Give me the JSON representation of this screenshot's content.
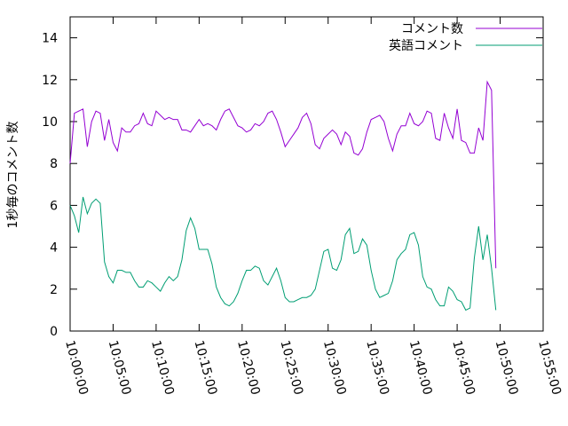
{
  "chart_data": {
    "type": "line",
    "ylabel": "1秒毎のコメント数",
    "xlabel": "",
    "ylim": [
      0,
      15
    ],
    "yticks": [
      0,
      2,
      4,
      6,
      8,
      10,
      12,
      14
    ],
    "x_range_minutes": [
      0,
      55
    ],
    "xticks": [
      "10:00:00",
      "10:05:00",
      "10:10:00",
      "10:15:00",
      "10:20:00",
      "10:25:00",
      "10:30:00",
      "10:35:00",
      "10:40:00",
      "10:45:00",
      "10:50:00",
      "10:55:00"
    ],
    "legend_position": "top-right",
    "grid": false,
    "x_step_minutes": 0.5,
    "series": [
      {
        "name": "コメント数",
        "color": "#9400d3",
        "values": [
          8.0,
          10.4,
          10.5,
          10.6,
          8.8,
          10.0,
          10.5,
          10.4,
          9.1,
          10.1,
          9.0,
          8.6,
          9.7,
          9.5,
          9.5,
          9.8,
          9.9,
          10.4,
          9.9,
          9.8,
          10.5,
          10.3,
          10.1,
          10.2,
          10.1,
          10.1,
          9.6,
          9.6,
          9.5,
          9.8,
          10.1,
          9.8,
          9.9,
          9.8,
          9.6,
          10.1,
          10.5,
          10.6,
          10.2,
          9.8,
          9.7,
          9.5,
          9.6,
          9.9,
          9.8,
          10.0,
          10.4,
          10.5,
          10.1,
          9.5,
          8.8,
          9.1,
          9.4,
          9.7,
          10.2,
          10.4,
          9.9,
          8.9,
          8.7,
          9.2,
          9.4,
          9.6,
          9.4,
          8.9,
          9.5,
          9.3,
          8.5,
          8.4,
          8.7,
          9.5,
          10.1,
          10.2,
          10.3,
          10.0,
          9.2,
          8.6,
          9.4,
          9.8,
          9.8,
          10.4,
          9.9,
          9.8,
          10.0,
          10.5,
          10.4,
          9.2,
          9.1,
          10.4,
          9.7,
          9.2,
          10.6,
          9.1,
          9.0,
          8.5,
          8.5,
          9.7,
          9.1,
          11.9,
          11.5,
          3.0
        ]
      },
      {
        "name": "英語コメント",
        "color": "#009e73",
        "values": [
          6.0,
          5.5,
          4.7,
          6.4,
          5.6,
          6.1,
          6.3,
          6.1,
          3.3,
          2.6,
          2.3,
          2.9,
          2.9,
          2.8,
          2.8,
          2.4,
          2.1,
          2.1,
          2.4,
          2.3,
          2.1,
          1.9,
          2.3,
          2.6,
          2.4,
          2.6,
          3.4,
          4.8,
          5.4,
          4.9,
          3.9,
          3.9,
          3.9,
          3.2,
          2.1,
          1.6,
          1.3,
          1.2,
          1.4,
          1.8,
          2.4,
          2.9,
          2.9,
          3.1,
          3.0,
          2.4,
          2.2,
          2.6,
          3.0,
          2.4,
          1.6,
          1.4,
          1.4,
          1.5,
          1.6,
          1.6,
          1.7,
          2.0,
          2.9,
          3.8,
          3.9,
          3.0,
          2.9,
          3.4,
          4.6,
          4.9,
          3.7,
          3.8,
          4.4,
          4.1,
          2.9,
          2.0,
          1.6,
          1.7,
          1.8,
          2.4,
          3.4,
          3.7,
          3.9,
          4.6,
          4.7,
          4.1,
          2.6,
          2.1,
          2.0,
          1.5,
          1.2,
          1.2,
          2.1,
          1.9,
          1.5,
          1.4,
          1.0,
          1.1,
          3.5,
          5.0,
          3.4,
          4.6,
          3.0,
          1.0
        ]
      }
    ]
  }
}
